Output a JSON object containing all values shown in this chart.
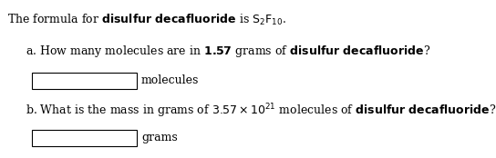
{
  "bg_color": "#ffffff",
  "line1": "The formula for $\\mathbf{disulfur\\ decafluoride}$ is $\\mathrm{S_2F_{10}}$.",
  "line2": "a. How many molecules are in $\\mathbf{1.57}$ grams of $\\mathbf{disulfur\\ decafluoride}$?",
  "line3_label": "molecules",
  "line4": "b. What is the mass in grams of $3.57 \\times 10^{21}$ molecules of $\\mathbf{disulfur\\ decafluoride}$?",
  "line5_label": "grams",
  "fontsize": 9.0,
  "fig_width": 5.44,
  "fig_height": 1.74,
  "dpi": 100
}
